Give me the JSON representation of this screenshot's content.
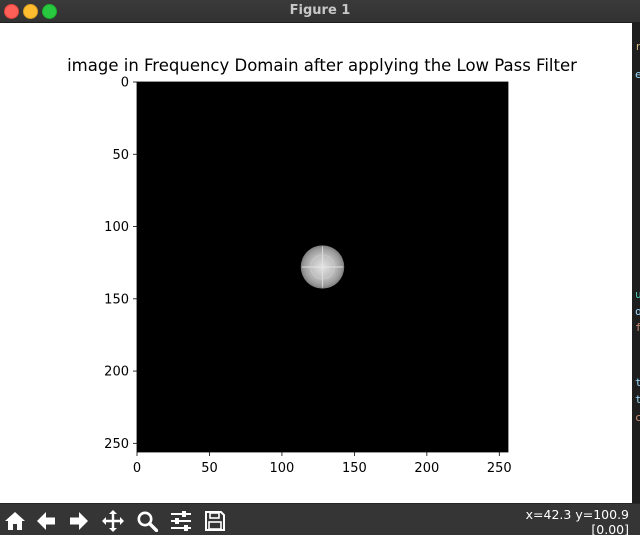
{
  "window": {
    "title": "Figure 1",
    "close_color": "#ff5f57",
    "minimize_color": "#febc2e",
    "maximize_color": "#28c840"
  },
  "figure": {
    "title": "image in Frequency Domain after applying the Low Pass Filter"
  },
  "chart_data": {
    "type": "heatmap",
    "title": "image in Frequency Domain after applying the Low Pass Filter",
    "xlabel": "",
    "ylabel": "",
    "xlim": [
      0,
      256
    ],
    "ylim": [
      256,
      0
    ],
    "x_ticks": [
      0,
      50,
      100,
      150,
      200,
      250
    ],
    "y_ticks": [
      0,
      50,
      100,
      150,
      200,
      250
    ],
    "colormap": "gray",
    "background_value": 0,
    "bright_region": {
      "shape": "circle",
      "center": [
        128,
        128
      ],
      "radius": 15
    }
  },
  "toolbar": {
    "buttons": [
      {
        "name": "home-button",
        "icon": "home-icon"
      },
      {
        "name": "back-button",
        "icon": "arrow-left-icon"
      },
      {
        "name": "forward-button",
        "icon": "arrow-right-icon"
      },
      {
        "name": "pan-button",
        "icon": "move-icon"
      },
      {
        "name": "zoom-button",
        "icon": "magnifier-icon"
      },
      {
        "name": "configure-subplots-button",
        "icon": "sliders-icon"
      },
      {
        "name": "save-button",
        "icon": "floppy-disk-icon"
      }
    ],
    "coords_line1": "x=42.3 y=100.9",
    "coords_line2": "[0.00]"
  },
  "background_editor": {
    "fragment_chars": [
      "r",
      "e",
      "u",
      "o",
      "f",
      "t",
      "t",
      "c"
    ],
    "fragment_colors": [
      "#d7ba7d",
      "#9cdcfe",
      "#4ec9b0",
      "#9cdcfe",
      "#ce9178",
      "#9cdcfe",
      "#9cdcfe",
      "#ce9178"
    ]
  }
}
